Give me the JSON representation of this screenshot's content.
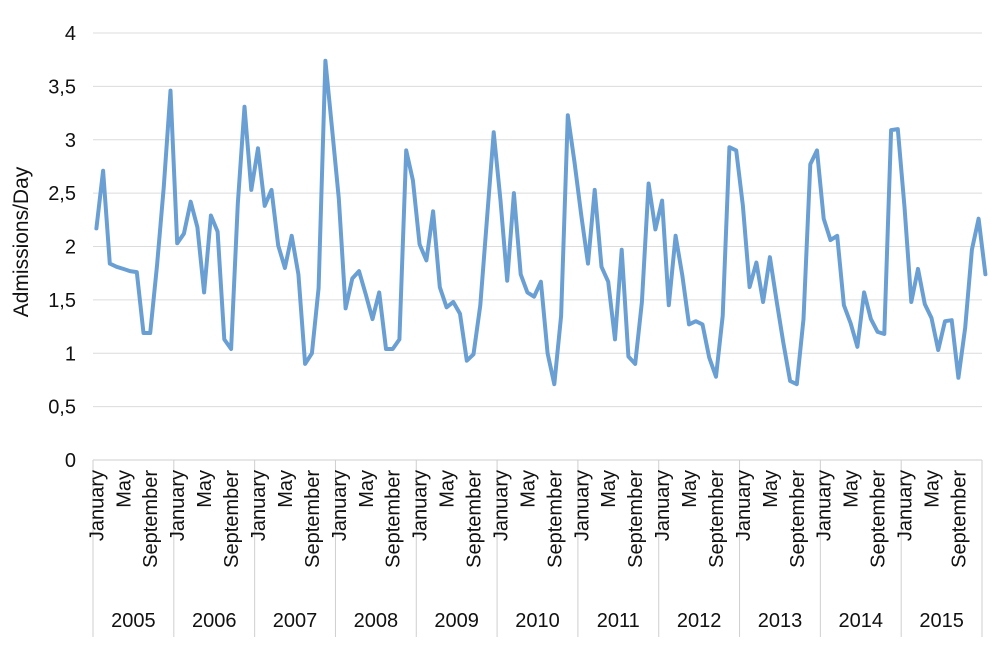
{
  "chart_data": {
    "type": "line",
    "ylabel": "Admissions/Day",
    "ylim": [
      0,
      4
    ],
    "y_ticks": [
      "0",
      "0,5",
      "1",
      "1,5",
      "2",
      "2,5",
      "3",
      "3,5",
      "4"
    ],
    "grid": true,
    "years": [
      "2005",
      "2006",
      "2007",
      "2008",
      "2009",
      "2010",
      "2011",
      "2012",
      "2013",
      "2014",
      "2015"
    ],
    "month_labels": [
      "January",
      "May",
      "September"
    ],
    "series": [
      {
        "color": "#6a9fd4",
        "values": [
          2.17,
          2.71,
          1.84,
          1.81,
          1.79,
          1.77,
          1.76,
          1.19,
          1.19,
          1.82,
          2.55,
          3.46,
          2.03,
          2.12,
          2.42,
          2.18,
          1.57,
          2.29,
          2.14,
          1.13,
          1.04,
          2.4,
          3.31,
          2.53,
          2.92,
          2.38,
          2.53,
          2.01,
          1.8,
          2.1,
          1.74,
          0.9,
          1.0,
          1.61,
          3.74,
          3.1,
          2.45,
          1.42,
          1.7,
          1.77,
          1.55,
          1.32,
          1.57,
          1.04,
          1.04,
          1.13,
          2.9,
          2.62,
          2.02,
          1.87,
          2.33,
          1.62,
          1.43,
          1.48,
          1.37,
          0.93,
          0.99,
          1.45,
          2.26,
          3.07,
          2.43,
          1.68,
          2.5,
          1.74,
          1.57,
          1.53,
          1.67,
          1.0,
          0.71,
          1.35,
          3.23,
          2.79,
          2.29,
          1.84,
          2.53,
          1.81,
          1.67,
          1.13,
          1.97,
          0.97,
          0.9,
          1.48,
          2.59,
          2.16,
          2.43,
          1.45,
          2.1,
          1.73,
          1.27,
          1.3,
          1.27,
          0.96,
          0.78,
          1.35,
          2.93,
          2.9,
          2.38,
          1.62,
          1.85,
          1.48,
          1.9,
          1.49,
          1.1,
          0.74,
          0.71,
          1.32,
          2.77,
          2.9,
          2.26,
          2.06,
          2.1,
          1.45,
          1.28,
          1.06,
          1.57,
          1.32,
          1.2,
          1.18,
          3.09,
          3.1,
          2.37,
          1.48,
          1.79,
          1.46,
          1.33,
          1.03,
          1.3,
          1.31,
          0.77,
          1.24,
          1.97,
          2.26,
          1.74
        ]
      }
    ]
  }
}
